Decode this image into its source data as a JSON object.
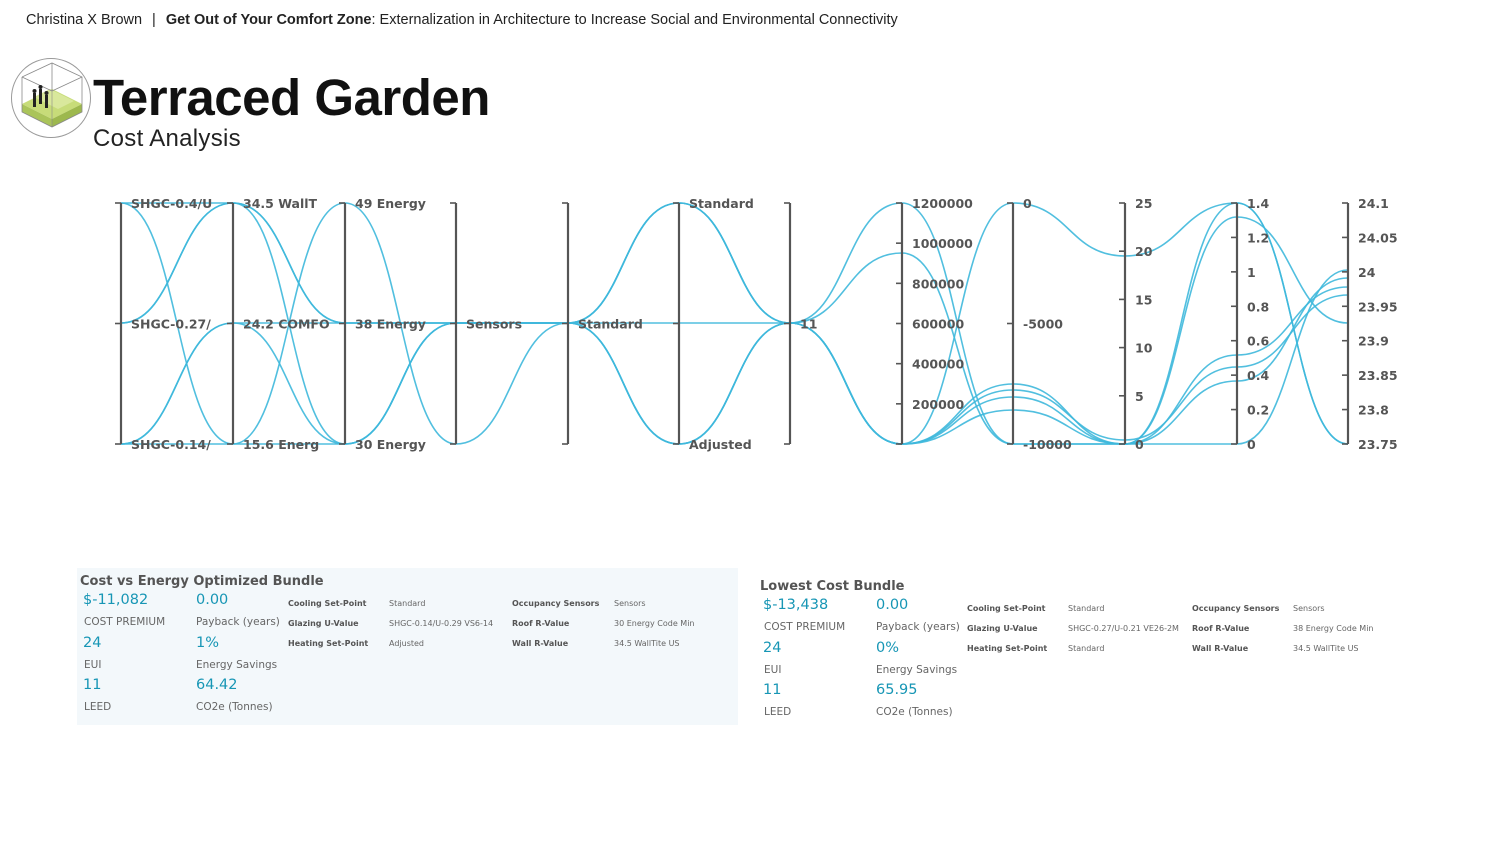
{
  "header": {
    "author": "Christina X Brown",
    "separator": "|",
    "thesis_bold": "Get Out of Your Comfort Zone",
    "thesis_rest": ": Externalization in Architecture to Increase Social and Environmental Connectivity"
  },
  "title": "Terraced Garden",
  "subtitle": "Cost Analysis",
  "colors": {
    "line": "#3eb8dc",
    "axis": "#555555",
    "accent_value": "#1796b5",
    "panel_bg": "#f3f8fb"
  },
  "chart_data": {
    "type": "parallel-coordinates",
    "axes": [
      {
        "ticks": [
          "SHGC-0.4/U",
          "SHGC-0.27/",
          "SHGC-0.14/"
        ]
      },
      {
        "ticks": [
          "34.5 WallT",
          "24.2 COMFO",
          "15.6 Energ"
        ]
      },
      {
        "ticks": [
          "49 Energy",
          "38 Energy",
          "30 Energy"
        ]
      },
      {
        "ticks": [
          "",
          "Sensors",
          ""
        ]
      },
      {
        "ticks": [
          "",
          "Standard",
          ""
        ]
      },
      {
        "ticks": [
          "Standard",
          "",
          "Adjusted"
        ]
      },
      {
        "ticks": [
          "",
          "11",
          ""
        ]
      },
      {
        "ticks": [
          "1200000",
          "1000000",
          "800000",
          "600000",
          "400000",
          "200000",
          ""
        ]
      },
      {
        "ticks": [
          "0",
          "-5000",
          "-10000"
        ]
      },
      {
        "ticks": [
          "25",
          "20",
          "15",
          "10",
          "5",
          "0"
        ]
      },
      {
        "ticks": [
          "1.4",
          "1.2",
          "1",
          "0.8",
          "0.6",
          "0.4",
          "0.2",
          "0"
        ]
      },
      {
        "ticks": [
          "24.1",
          "24.05",
          "24",
          "23.95",
          "23.9",
          "23.85",
          "23.8",
          "23.75"
        ]
      }
    ]
  },
  "bundles": [
    {
      "title": "Cost vs Energy Optimized Bundle",
      "metrics": [
        {
          "value": "$-11,082",
          "label": "COST PREMIUM"
        },
        {
          "value": "0.00",
          "label": "Payback (years)"
        },
        {
          "value": "24",
          "label": "EUI"
        },
        {
          "value": "1%",
          "label": "Energy Savings"
        },
        {
          "value": "11",
          "label": "LEED"
        },
        {
          "value": "64.42",
          "label": "CO2e (Tonnes)"
        }
      ],
      "params": [
        {
          "key": "Cooling Set-Point",
          "value": "Standard"
        },
        {
          "key": "Glazing U-Value",
          "value": "SHGC-0.14/U-0.29 VS6-14"
        },
        {
          "key": "Heating Set-Point",
          "value": "Adjusted"
        },
        {
          "key": "Occupancy Sensors",
          "value": "Sensors"
        },
        {
          "key": "Roof R-Value",
          "value": "30 Energy Code Min"
        },
        {
          "key": "Wall R-Value",
          "value": "34.5 WallTite US"
        }
      ]
    },
    {
      "title": "Lowest Cost Bundle",
      "metrics": [
        {
          "value": "$-13,438",
          "label": "COST PREMIUM"
        },
        {
          "value": "0.00",
          "label": "Payback (years)"
        },
        {
          "value": "24",
          "label": "EUI"
        },
        {
          "value": "0%",
          "label": "Energy Savings"
        },
        {
          "value": "11",
          "label": "LEED"
        },
        {
          "value": "65.95",
          "label": "CO2e (Tonnes)"
        }
      ],
      "params": [
        {
          "key": "Cooling Set-Point",
          "value": "Standard"
        },
        {
          "key": "Glazing U-Value",
          "value": "SHGC-0.27/U-0.21 VE26-2M"
        },
        {
          "key": "Heating Set-Point",
          "value": "Standard"
        },
        {
          "key": "Occupancy Sensors",
          "value": "Sensors"
        },
        {
          "key": "Roof R-Value",
          "value": "38 Energy Code Min"
        },
        {
          "key": "Wall R-Value",
          "value": "34.5 WallTite US"
        }
      ]
    }
  ]
}
